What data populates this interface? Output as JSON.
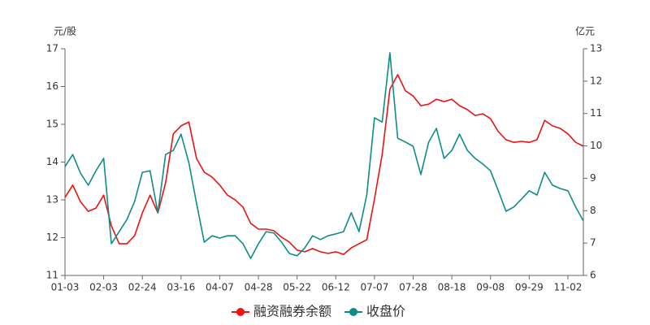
{
  "chart_data": {
    "type": "line",
    "ylabel": "元/股",
    "y2label": "亿元",
    "categories": [
      "01-03",
      null,
      null,
      null,
      null,
      "02-03",
      null,
      null,
      null,
      null,
      "02-24",
      null,
      null,
      null,
      null,
      "03-16",
      null,
      null,
      null,
      null,
      "04-07",
      null,
      null,
      null,
      null,
      "04-28",
      null,
      null,
      null,
      null,
      "05-22",
      null,
      null,
      null,
      null,
      "06-12",
      null,
      null,
      null,
      null,
      "07-07",
      null,
      null,
      null,
      null,
      "07-28",
      null,
      null,
      null,
      null,
      "08-18",
      null,
      null,
      null,
      null,
      "09-08",
      null,
      null,
      null,
      null,
      "09-29",
      null,
      null,
      null,
      null,
      "11-02",
      null,
      null
    ],
    "ylim": [
      11,
      17
    ],
    "yticks": [
      11,
      12,
      13,
      14,
      15,
      16,
      17
    ],
    "y2lim": [
      6,
      13
    ],
    "y2ticks": [
      6,
      7,
      8,
      9,
      10,
      11,
      12,
      13
    ],
    "legend": "bottom",
    "series": [
      {
        "name": "融资融券余额",
        "color": "#ee1111",
        "axis": "y2",
        "values": [
          8.41,
          8.79,
          8.28,
          7.98,
          8.08,
          8.48,
          7.53,
          6.98,
          6.98,
          7.23,
          7.93,
          8.48,
          7.93,
          8.86,
          10.37,
          10.62,
          10.74,
          9.61,
          9.19,
          9.04,
          8.79,
          8.48,
          8.33,
          8.11,
          7.61,
          7.43,
          7.43,
          7.38,
          7.18,
          7.03,
          6.78,
          6.73,
          6.83,
          6.73,
          6.68,
          6.73,
          6.65,
          6.85,
          6.98,
          7.1,
          8.36,
          9.74,
          11.75,
          12.2,
          11.7,
          11.54,
          11.24,
          11.29,
          11.44,
          11.37,
          11.44,
          11.24,
          11.12,
          10.94,
          10.99,
          10.84,
          10.44,
          10.19,
          10.11,
          10.14,
          10.11,
          10.19,
          10.79,
          10.62,
          10.54,
          10.37,
          10.11,
          9.99
        ]
      },
      {
        "name": "收盘价",
        "color": "#0e8c88",
        "values": [
          13.88,
          14.2,
          13.71,
          13.39,
          13.77,
          14.1,
          11.84,
          12.16,
          12.48,
          12.96,
          13.73,
          13.77,
          12.66,
          14.2,
          14.31,
          14.74,
          13.99,
          12.91,
          11.88,
          12.05,
          11.99,
          12.05,
          12.05,
          11.84,
          11.45,
          11.84,
          12.16,
          12.12,
          11.88,
          11.58,
          11.52,
          11.73,
          12.05,
          11.95,
          12.05,
          12.1,
          12.16,
          12.66,
          12.16,
          13.13,
          15.17,
          15.06,
          16.89,
          14.63,
          14.53,
          14.42,
          13.67,
          14.53,
          14.89,
          14.1,
          14.31,
          14.74,
          14.31,
          14.1,
          13.95,
          13.77,
          13.24,
          12.7,
          12.81,
          13.02,
          13.24,
          13.13,
          13.73,
          13.39,
          13.3,
          13.24,
          12.81,
          12.44
        ]
      }
    ]
  }
}
